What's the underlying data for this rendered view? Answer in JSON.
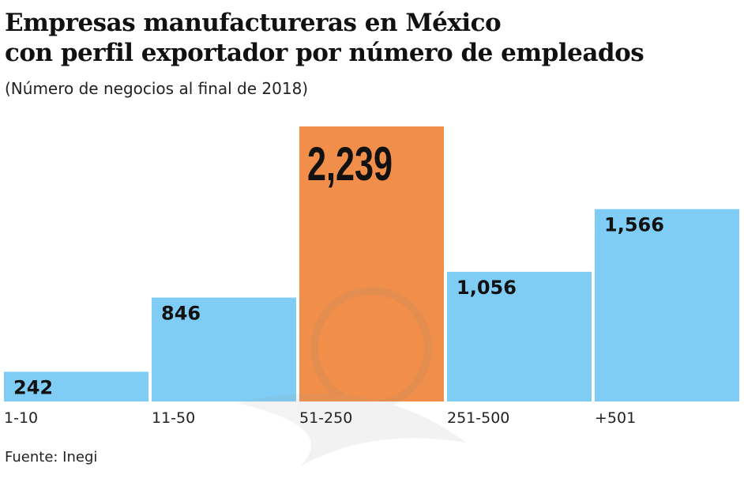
{
  "chart_data": {
    "type": "bar",
    "title": "Empresas manufactureras en México con perfil exportador  por número de empleados",
    "title_lines": [
      "Empresas manufactureras en México",
      "con perfil exportador  por número de empleados"
    ],
    "subtitle": "(Número de negocios al final de 2018)",
    "categories": [
      "1-10",
      "11-50",
      "51-250",
      "251-500",
      "+501"
    ],
    "values": [
      242,
      846,
      2239,
      1056,
      1566
    ],
    "data_labels": [
      "242",
      "846",
      "2,239",
      "1,056",
      "1,566"
    ],
    "highlight_index": 2,
    "colors": {
      "default": "#7fcdf4",
      "highlight": "#f0883f"
    },
    "ylim": [
      0,
      2239
    ],
    "grid": false,
    "xlabel": "",
    "ylabel": "",
    "source": "Fuente: Inegi"
  }
}
